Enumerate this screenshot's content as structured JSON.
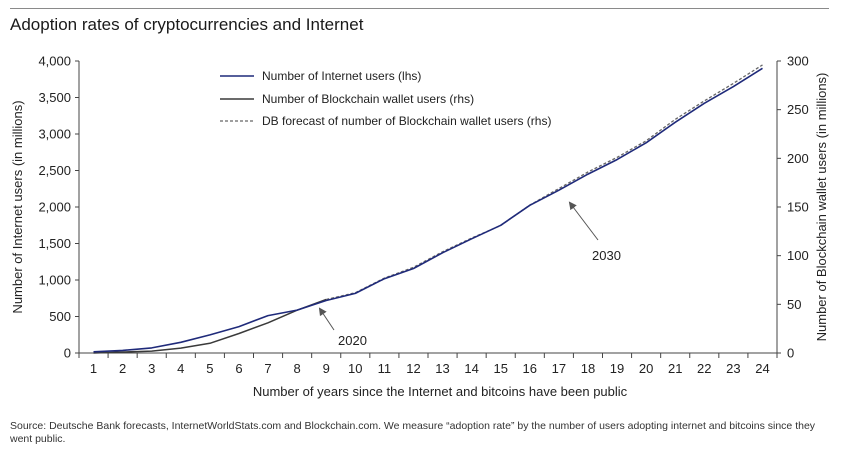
{
  "title": "Adoption rates of cryptocurrencies and Internet",
  "source": "Source: Deutsche Bank forecasts, InternetWorldStats.com and Blockchain.com. We measure “adoption rate” by the number of users adopting internet and bitcoins since they went public.",
  "colors": {
    "internet": "#1f2a7a",
    "blockchain": "#3a3a3a",
    "forecast": "#666666",
    "axis": "#444444"
  },
  "chart_data": {
    "type": "line",
    "title": "Adoption rates of cryptocurrencies and Internet",
    "xlabel": "Number of years since the Internet and bitcoins have been public",
    "ylabel_left": "Number of Internet users (in millions)",
    "ylabel_right": "Number of Blockchain wallet users (in millions)",
    "x": [
      1,
      2,
      3,
      4,
      5,
      6,
      7,
      8,
      9,
      10,
      11,
      12,
      13,
      14,
      15,
      16,
      17,
      18,
      19,
      20,
      21,
      22,
      23,
      24
    ],
    "x_tick_labels": [
      "1",
      "2",
      "3",
      "4",
      "5",
      "6",
      "7",
      "8",
      "9",
      "10",
      "11",
      "12",
      "13",
      "14",
      "15",
      "16",
      "17",
      "18",
      "19",
      "20",
      "21",
      "22",
      "23",
      "24"
    ],
    "ylim_left": [
      0,
      4000
    ],
    "ylim_right": [
      0,
      300
    ],
    "left_tick_labels": [
      "0",
      "500",
      "1,000",
      "1,500",
      "2,000",
      "2,500",
      "3,000",
      "3,500",
      "4,000"
    ],
    "right_tick_labels": [
      "0",
      "50",
      "100",
      "150",
      "200",
      "250",
      "300"
    ],
    "legend_position": "top-left",
    "series": [
      {
        "name": "Number of Internet users (lhs)",
        "axis": "left",
        "style": "solid",
        "x": [
          1,
          2,
          3,
          4,
          5,
          6,
          7,
          8,
          9,
          10,
          11,
          12,
          13,
          14,
          15,
          16,
          17,
          18,
          19,
          20,
          21,
          22,
          23,
          24
        ],
        "values": [
          16,
          36,
          70,
          147,
          248,
          361,
          513,
          587,
          719,
          817,
          1018,
          1157,
          1373,
          1565,
          1750,
          2023,
          2230,
          2450,
          2650,
          2880,
          3160,
          3420,
          3650,
          3900
        ]
      },
      {
        "name": "Number of Blockchain wallet users (rhs)",
        "axis": "right",
        "style": "solid",
        "x": [
          1,
          2,
          3,
          4,
          5,
          6,
          7,
          8,
          9
        ],
        "values": [
          0,
          1,
          2,
          5,
          10,
          20,
          31,
          44,
          55
        ]
      },
      {
        "name": "DB forecast of number of Blockchain wallet users (rhs)",
        "axis": "right",
        "style": "dashed",
        "x": [
          9,
          10,
          11,
          12,
          13,
          14,
          15,
          16,
          17,
          18,
          19,
          20,
          21,
          22,
          23,
          24
        ],
        "values": [
          55,
          62,
          77,
          88,
          104,
          118,
          131,
          152,
          169,
          186,
          201,
          218,
          240,
          259,
          277,
          296
        ]
      }
    ],
    "annotations": [
      {
        "text": "2020",
        "x": 9
      },
      {
        "text": "2030",
        "x": 17
      }
    ]
  }
}
